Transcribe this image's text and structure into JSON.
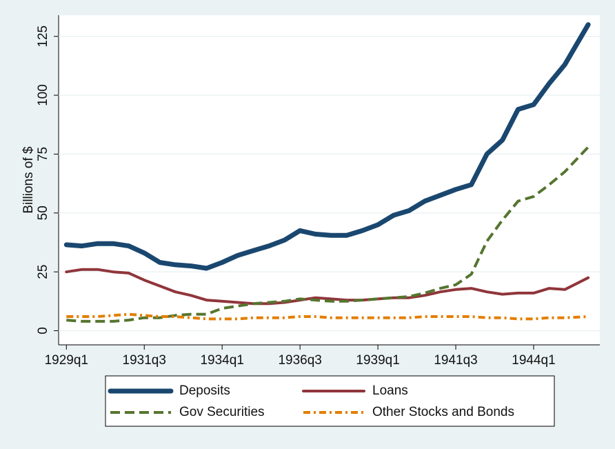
{
  "chart_data": {
    "type": "line",
    "ylabel": "Billions of $",
    "x": [
      0,
      2,
      4,
      6,
      8,
      10,
      12,
      14,
      16,
      18,
      20,
      22,
      24,
      26,
      28,
      30,
      32,
      34,
      36,
      38,
      40,
      42,
      44,
      46,
      48,
      50,
      52,
      54,
      56,
      58,
      60,
      62,
      64,
      67
    ],
    "xlim": [
      -1,
      68.5
    ],
    "xticks": [
      {
        "value": 0,
        "label": "1929q1"
      },
      {
        "value": 10,
        "label": "1931q3"
      },
      {
        "value": 20,
        "label": "1934q1"
      },
      {
        "value": 30,
        "label": "1936q3"
      },
      {
        "value": 40,
        "label": "1939q1"
      },
      {
        "value": 50,
        "label": "1941q3"
      },
      {
        "value": 60,
        "label": "1944q1"
      }
    ],
    "ylim": [
      -6,
      134
    ],
    "yticks": [
      0,
      25,
      50,
      75,
      100,
      125
    ],
    "grid": true,
    "legend": "bottom",
    "series": [
      {
        "name": "Deposits",
        "color": "#1a476f",
        "width": 7,
        "dash": "solid",
        "values": [
          36.5,
          36,
          37,
          37,
          36,
          33,
          29,
          28,
          27.5,
          26.5,
          29,
          32,
          34,
          36,
          38.5,
          42.5,
          41,
          40.5,
          40.5,
          42.5,
          45,
          49,
          51,
          55,
          57.5,
          60,
          62,
          75,
          81,
          94,
          96,
          105,
          113,
          130
        ]
      },
      {
        "name": "Loans",
        "color": "#90353b",
        "width": 4,
        "dash": "solid",
        "values": [
          25,
          26,
          26,
          25,
          24.5,
          21.5,
          19,
          16.5,
          15,
          13,
          12.5,
          12,
          11.5,
          11.5,
          12,
          13,
          14,
          13.5,
          13,
          13,
          13.5,
          14,
          14,
          15,
          16.5,
          17.5,
          18,
          16.5,
          15.5,
          16,
          16,
          18,
          17.5,
          22.5
        ]
      },
      {
        "name": "Gov Securities",
        "color": "#55752f",
        "width": 4,
        "dash": "dash",
        "values": [
          4.5,
          4,
          4,
          4,
          4.5,
          5.5,
          5.5,
          6.5,
          7,
          7,
          9.5,
          10.5,
          11.5,
          12,
          12.5,
          13.5,
          13,
          12.5,
          12.5,
          13,
          13.5,
          14,
          14.5,
          16,
          18,
          19.5,
          24,
          38,
          47,
          55,
          57,
          62,
          67.5,
          78
        ]
      },
      {
        "name": "Other Stocks and Bonds",
        "color": "#e37e00",
        "width": 4,
        "dash": "dashdot",
        "values": [
          6,
          6,
          6,
          6.5,
          7,
          6.5,
          6,
          6,
          5.5,
          5,
          5,
          5,
          5.5,
          5.5,
          5.5,
          6,
          6,
          5.5,
          5.5,
          5.5,
          5.5,
          5.5,
          5.5,
          6,
          6,
          6,
          6,
          5.5,
          5.5,
          5,
          5,
          5.5,
          5.5,
          6
        ]
      }
    ]
  }
}
